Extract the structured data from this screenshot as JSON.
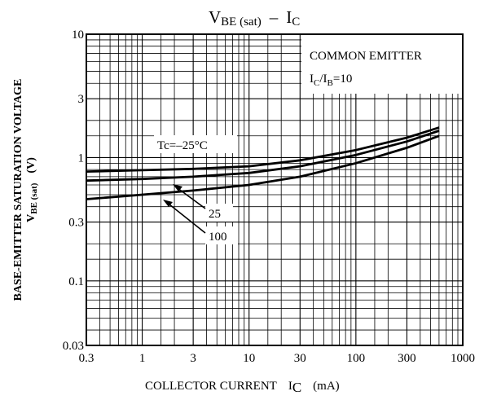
{
  "chart_data": {
    "type": "line",
    "title": {
      "main": "V",
      "main_sub": "BE (sat)",
      "sep": "–",
      "tail": "I",
      "tail_sub": "C"
    },
    "xlabel": {
      "text": "COLLECTOR CURRENT",
      "sym": "I",
      "sym_sub": "C",
      "unit": "(mA)"
    },
    "ylabel": {
      "line1": "BASE-EMITTER SATURATION VOLTAGE",
      "sym": "V",
      "sym_sub": "BE (sat)",
      "unit": "(V)"
    },
    "x_scale": "log",
    "y_scale": "log",
    "xlim": [
      0.3,
      1000
    ],
    "ylim": [
      0.03,
      10
    ],
    "x_ticks": [
      "0.3",
      "1",
      "3",
      "10",
      "30",
      "100",
      "300",
      "1000"
    ],
    "y_ticks": [
      "0.03",
      "0.1",
      "0.3",
      "1",
      "3",
      "10"
    ],
    "grid": true,
    "legend_box": {
      "line1": "COMMON EMITTER",
      "line2_a": "I",
      "line2_a_sub": "C",
      "line2_b": "/I",
      "line2_b_sub": "B",
      "line2_c": "=10"
    },
    "annotations": [
      "Tc=–25°C",
      "25",
      "100"
    ],
    "series": [
      {
        "name": "Tc=–25°C",
        "x": [
          0.3,
          1,
          3,
          10,
          30,
          100,
          300,
          600
        ],
        "y": [
          0.77,
          0.79,
          0.81,
          0.85,
          0.95,
          1.15,
          1.45,
          1.75
        ]
      },
      {
        "name": "25",
        "x": [
          0.3,
          1,
          3,
          10,
          30,
          100,
          300,
          600
        ],
        "y": [
          0.65,
          0.67,
          0.7,
          0.75,
          0.85,
          1.05,
          1.35,
          1.65
        ]
      },
      {
        "name": "100",
        "x": [
          0.3,
          1,
          3,
          10,
          30,
          100,
          300,
          600
        ],
        "y": [
          0.46,
          0.5,
          0.54,
          0.6,
          0.7,
          0.9,
          1.2,
          1.5
        ]
      }
    ]
  }
}
